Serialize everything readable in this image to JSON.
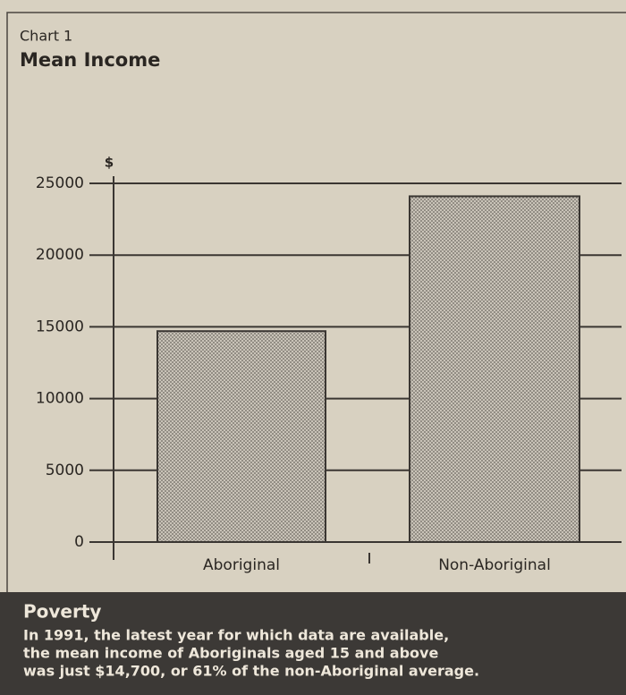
{
  "chart_data": {
    "type": "bar",
    "subtitle": "Chart 1",
    "title": "Mean Income",
    "y_label": "$",
    "categories": [
      "Aboriginal",
      "Non-Aboriginal"
    ],
    "values": [
      14700,
      24100
    ],
    "color": "#b3ada2",
    "ylim": [
      0,
      25000
    ],
    "yticks": [
      0,
      5000,
      10000,
      15000,
      20000,
      25000
    ],
    "grid": true,
    "annotation": {
      "title": "Poverty",
      "lines": [
        "In 1991, the latest year for which data are available,",
        "the mean income of Aboriginals aged 15 and above",
        "was just $14,700, or 61% of the non-Aboriginal average."
      ]
    }
  }
}
